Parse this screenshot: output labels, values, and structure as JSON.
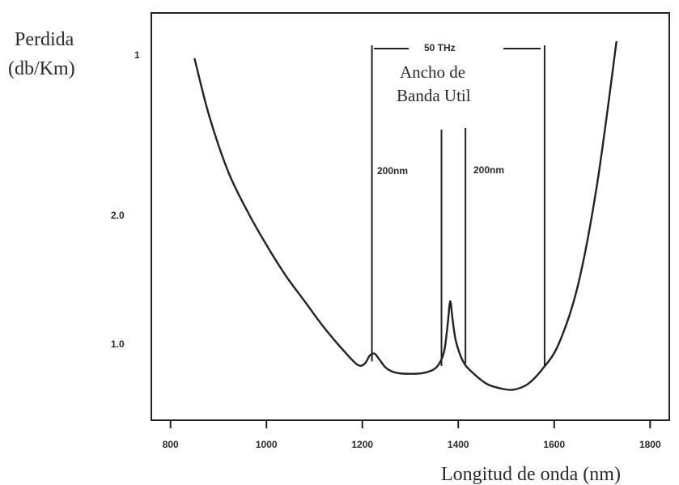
{
  "chart_data": {
    "type": "line",
    "ylabel_line1": "Perdida",
    "ylabel_line2": "(db/Km)",
    "xlabel": "Longitud de onda (nm)",
    "x_ticks": [
      "800",
      "1000",
      "1200",
      "1400",
      "1600",
      "1800"
    ],
    "y_ticks": [
      "1",
      "2.0",
      "1.0"
    ],
    "annotations": {
      "bandwidth": "50 THz",
      "useful_band_line1": "Ancho de",
      "useful_band_line2": "Banda Util",
      "left_band": "200nm",
      "right_band": "200nm"
    },
    "markers_nm": [
      1220,
      1365,
      1415,
      1580
    ],
    "series": [
      {
        "x": [
          850,
          880,
          920,
          960,
          1000,
          1040,
          1080,
          1120,
          1160,
          1190,
          1205,
          1215,
          1225,
          1235,
          1250,
          1270,
          1300,
          1330,
          1355,
          1370,
          1378,
          1383,
          1388,
          1395,
          1410,
          1430,
          1460,
          1490,
          1515,
          1545,
          1575,
          1610,
          1650,
          1690,
          1730
        ],
        "y": [
          3.5,
          3.0,
          2.5,
          2.15,
          1.85,
          1.58,
          1.35,
          1.12,
          0.92,
          0.79,
          0.8,
          0.87,
          0.89,
          0.84,
          0.76,
          0.72,
          0.71,
          0.72,
          0.77,
          0.9,
          1.15,
          1.35,
          1.2,
          1.0,
          0.82,
          0.72,
          0.62,
          0.58,
          0.57,
          0.62,
          0.75,
          0.98,
          1.5,
          2.4,
          3.65
        ]
      }
    ],
    "xlim": [
      760,
      1840
    ],
    "ylim": [
      0.3,
      3.9
    ]
  }
}
